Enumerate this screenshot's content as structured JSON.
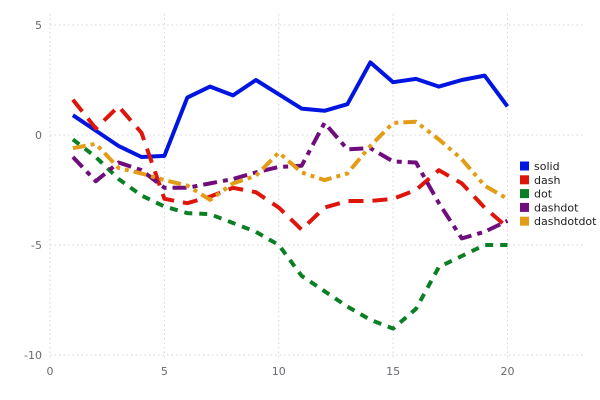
{
  "chart_data": {
    "type": "line",
    "title": "",
    "xlabel": "",
    "ylabel": "",
    "x": [
      1,
      2,
      3,
      4,
      5,
      6,
      7,
      8,
      9,
      10,
      11,
      12,
      13,
      14,
      15,
      16,
      17,
      18,
      19,
      20
    ],
    "series": [
      {
        "name": "solid",
        "color": "#0016e0",
        "linestyle": "solid",
        "values": [
          0.9,
          0.2,
          -0.5,
          -1.0,
          -0.95,
          1.7,
          2.2,
          1.8,
          2.5,
          1.85,
          1.2,
          1.1,
          1.4,
          3.3,
          2.4,
          2.55,
          2.2,
          2.5,
          2.7,
          1.3
        ]
      },
      {
        "name": "dash",
        "color": "#de150b",
        "linestyle": "dash",
        "values": [
          1.6,
          0.3,
          1.3,
          0.1,
          -2.9,
          -3.1,
          -2.8,
          -2.4,
          -2.6,
          -3.3,
          -4.3,
          -3.3,
          -3.0,
          -3.0,
          -2.9,
          -2.5,
          -1.6,
          -2.2,
          -3.3,
          -4.2
        ]
      },
      {
        "name": "dot",
        "color": "#0b7f23",
        "linestyle": "dot",
        "values": [
          -0.2,
          -1.0,
          -2.0,
          -2.75,
          -3.25,
          -3.55,
          -3.6,
          -4.0,
          -4.4,
          -5.0,
          -6.4,
          -7.1,
          -7.8,
          -8.4,
          -8.8,
          -7.9,
          -6.0,
          -5.5,
          -5.0,
          -5.0
        ]
      },
      {
        "name": "dashdot",
        "color": "#6f0d7d",
        "linestyle": "dashdot",
        "values": [
          -1.0,
          -2.1,
          -1.25,
          -1.6,
          -2.4,
          -2.4,
          -2.2,
          -2.0,
          -1.7,
          -1.45,
          -1.4,
          0.55,
          -0.65,
          -0.6,
          -1.2,
          -1.25,
          -3.1,
          -4.7,
          -4.4,
          -3.9
        ]
      },
      {
        "name": "dashdotdot",
        "color": "#e39c16",
        "linestyle": "dashdotdot",
        "values": [
          -0.6,
          -0.4,
          -1.5,
          -1.75,
          -2.05,
          -2.3,
          -2.95,
          -2.2,
          -1.85,
          -0.8,
          -1.7,
          -2.05,
          -1.75,
          -0.5,
          0.55,
          0.6,
          -0.2,
          -1.1,
          -2.3,
          -2.9
        ]
      }
    ],
    "xticks": [
      0,
      5,
      10,
      15,
      20
    ],
    "yticks": [
      -10,
      -5,
      0,
      5
    ],
    "xtick_labels": [
      "0",
      "5",
      "10",
      "15",
      "20"
    ],
    "ytick_labels": [
      "-10",
      "-5",
      "0",
      "5"
    ],
    "xlim": [
      0,
      21.6
    ],
    "ylim": [
      -10.5,
      5.5
    ],
    "grid": true,
    "grid_color": "#d4d4e4",
    "legend_position": "right",
    "legend_items": [
      "solid",
      "dash",
      "dot",
      "dashdot",
      "dashdotdot"
    ]
  }
}
